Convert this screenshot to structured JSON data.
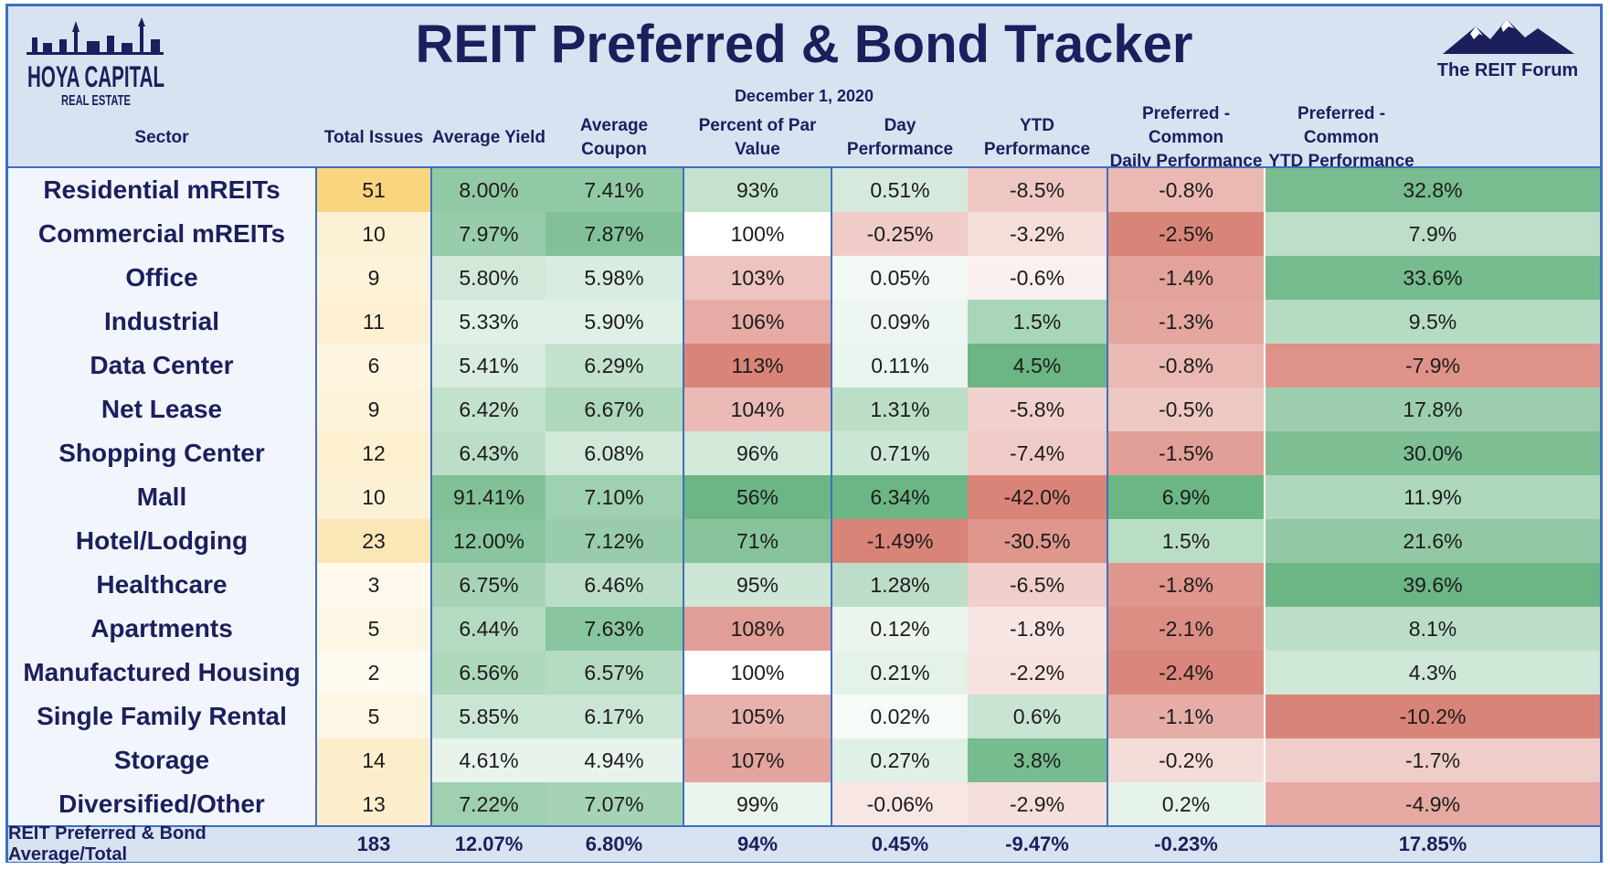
{
  "brand": {
    "left_logo": "HOYA CAPITAL",
    "left_logo_sub": "REAL ESTATE",
    "right_logo": "The REIT Forum"
  },
  "title": "REIT Preferred & Bond Tracker",
  "date": "December 1, 2020",
  "headers": {
    "sector": "Sector",
    "total_issues": "Total Issues",
    "avg_yield": "Average Yield",
    "avg_coupon": "Average Coupon",
    "pct_par": "Percent of Par Value",
    "day_perf": "Day Performance",
    "ytd_perf": "YTD Performance",
    "pc_daily_line1": "Preferred - Common",
    "pc_daily_line2": "Daily Performance",
    "pc_ytd_line1": "Preferred - Common",
    "pc_ytd_line2": "YTD Performance"
  },
  "colors": {
    "accent": "#3e6fbf",
    "title": "#1b1f5c",
    "header_bg": "#d8e3f2",
    "good": "#63b27e",
    "bad": "#d77d72",
    "amber": "#f8d57e"
  },
  "chart_data": {
    "type": "table",
    "title": "REIT Preferred & Bond Tracker",
    "columns": [
      "Sector",
      "Total Issues",
      "Average Yield",
      "Average Coupon",
      "Percent of Par Value",
      "Day Performance",
      "YTD Performance",
      "Preferred - Common Daily Performance",
      "Preferred - Common YTD Performance"
    ],
    "rows": [
      {
        "sector": "Residential mREITs",
        "issues": "51",
        "yield": "8.00%",
        "coupon": "7.41%",
        "par": "93%",
        "day": "0.51%",
        "ytd": "-8.5%",
        "pc_daily": "-0.8%",
        "pc_ytd": "32.8%"
      },
      {
        "sector": "Commercial mREITs",
        "issues": "10",
        "yield": "7.97%",
        "coupon": "7.87%",
        "par": "100%",
        "day": "-0.25%",
        "ytd": "-3.2%",
        "pc_daily": "-2.5%",
        "pc_ytd": "7.9%"
      },
      {
        "sector": "Office",
        "issues": "9",
        "yield": "5.80%",
        "coupon": "5.98%",
        "par": "103%",
        "day": "0.05%",
        "ytd": "-0.6%",
        "pc_daily": "-1.4%",
        "pc_ytd": "33.6%"
      },
      {
        "sector": "Industrial",
        "issues": "11",
        "yield": "5.33%",
        "coupon": "5.90%",
        "par": "106%",
        "day": "0.09%",
        "ytd": "1.5%",
        "pc_daily": "-1.3%",
        "pc_ytd": "9.5%"
      },
      {
        "sector": "Data Center",
        "issues": "6",
        "yield": "5.41%",
        "coupon": "6.29%",
        "par": "113%",
        "day": "0.11%",
        "ytd": "4.5%",
        "pc_daily": "-0.8%",
        "pc_ytd": "-7.9%"
      },
      {
        "sector": "Net Lease",
        "issues": "9",
        "yield": "6.42%",
        "coupon": "6.67%",
        "par": "104%",
        "day": "1.31%",
        "ytd": "-5.8%",
        "pc_daily": "-0.5%",
        "pc_ytd": "17.8%"
      },
      {
        "sector": "Shopping Center",
        "issues": "12",
        "yield": "6.43%",
        "coupon": "6.08%",
        "par": "96%",
        "day": "0.71%",
        "ytd": "-7.4%",
        "pc_daily": "-1.5%",
        "pc_ytd": "30.0%"
      },
      {
        "sector": "Mall",
        "issues": "10",
        "yield": "91.41%",
        "coupon": "7.10%",
        "par": "56%",
        "day": "6.34%",
        "ytd": "-42.0%",
        "pc_daily": "6.9%",
        "pc_ytd": "11.9%"
      },
      {
        "sector": "Hotel/Lodging",
        "issues": "23",
        "yield": "12.00%",
        "coupon": "7.12%",
        "par": "71%",
        "day": "-1.49%",
        "ytd": "-30.5%",
        "pc_daily": "1.5%",
        "pc_ytd": "21.6%"
      },
      {
        "sector": "Healthcare",
        "issues": "3",
        "yield": "6.75%",
        "coupon": "6.46%",
        "par": "95%",
        "day": "1.28%",
        "ytd": "-6.5%",
        "pc_daily": "-1.8%",
        "pc_ytd": "39.6%"
      },
      {
        "sector": "Apartments",
        "issues": "5",
        "yield": "6.44%",
        "coupon": "7.63%",
        "par": "108%",
        "day": "0.12%",
        "ytd": "-1.8%",
        "pc_daily": "-2.1%",
        "pc_ytd": "8.1%"
      },
      {
        "sector": "Manufactured Housing",
        "issues": "2",
        "yield": "6.56%",
        "coupon": "6.57%",
        "par": "100%",
        "day": "0.21%",
        "ytd": "-2.2%",
        "pc_daily": "-2.4%",
        "pc_ytd": "4.3%"
      },
      {
        "sector": "Single Family Rental",
        "issues": "5",
        "yield": "5.85%",
        "coupon": "6.17%",
        "par": "105%",
        "day": "0.02%",
        "ytd": "0.6%",
        "pc_daily": "-1.1%",
        "pc_ytd": "-10.2%"
      },
      {
        "sector": "Storage",
        "issues": "14",
        "yield": "4.61%",
        "coupon": "4.94%",
        "par": "107%",
        "day": "0.27%",
        "ytd": "3.8%",
        "pc_daily": "-0.2%",
        "pc_ytd": "-1.7%"
      },
      {
        "sector": "Diversified/Other",
        "issues": "13",
        "yield": "7.22%",
        "coupon": "7.07%",
        "par": "99%",
        "day": "-0.06%",
        "ytd": "-2.9%",
        "pc_daily": "0.2%",
        "pc_ytd": "-4.9%"
      }
    ],
    "total": {
      "sector": "REIT Preferred & Bond Average/Total",
      "issues": "183",
      "yield": "12.07%",
      "coupon": "6.80%",
      "par": "94%",
      "day": "0.45%",
      "ytd": "-9.47%",
      "pc_daily": "-0.23%",
      "pc_ytd": "17.85%"
    }
  }
}
